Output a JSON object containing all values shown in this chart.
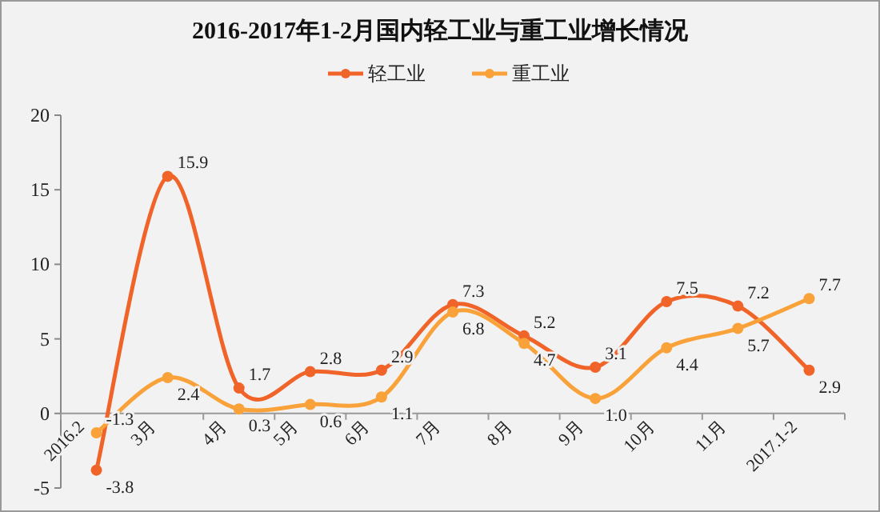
{
  "chart_data": {
    "type": "line",
    "title": "2016-2017年1-2月国内轻工业与重工业增长情况",
    "categories": [
      "2016.2",
      "3月",
      "4月",
      "5月",
      "6月",
      "7月",
      "8月",
      "9月",
      "10月",
      "11月",
      "2017.1-2"
    ],
    "series": [
      {
        "name": "轻工业",
        "color": "#f0642a",
        "values": [
          -3.8,
          15.9,
          1.7,
          2.8,
          2.9,
          7.3,
          5.2,
          3.1,
          7.5,
          7.2,
          2.9
        ],
        "value_labels": [
          "-3.8",
          "15.9",
          "1.7",
          "2.8",
          "2.9",
          "7.3",
          "5.2",
          "3.1",
          "7.5",
          "7.2",
          "2.9"
        ]
      },
      {
        "name": "重工业",
        "color": "#f9a23a",
        "values": [
          -1.3,
          2.4,
          0.3,
          0.6,
          1.1,
          6.8,
          4.7,
          1.0,
          4.4,
          5.7,
          7.7
        ],
        "value_labels": [
          "-1.3",
          "2.4",
          "0.3",
          "0.6",
          "1.1",
          "6.8",
          "4.7",
          "1.0",
          "4.4",
          "5.7",
          "7.7"
        ]
      }
    ],
    "ylim": [
      -5,
      20
    ],
    "yticks": [
      -5,
      0,
      5,
      10,
      15,
      20
    ],
    "grid": false,
    "legend": "top",
    "marker": "circle",
    "line_style": "solid"
  }
}
